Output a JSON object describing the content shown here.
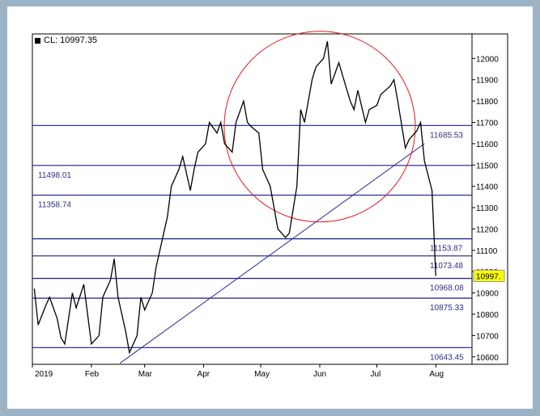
{
  "chart_data": {
    "type": "line",
    "title": "CL: 10997.35",
    "series": [
      {
        "values_note": "",
        "x": [
          "2019-01-02",
          "2019-01-04",
          "2019-01-08",
          "2019-01-10",
          "2019-01-14",
          "2019-01-16",
          "2019-01-18",
          "2019-01-22",
          "2019-01-24",
          "2019-01-28",
          "2019-01-30",
          "2019-02-01",
          "2019-02-05",
          "2019-02-07",
          "2019-02-11",
          "2019-02-13",
          "2019-02-15",
          "2019-02-19",
          "2019-02-21",
          "2019-02-25",
          "2019-02-27",
          "2019-03-01",
          "2019-03-05",
          "2019-03-07",
          "2019-03-11",
          "2019-03-13",
          "2019-03-15",
          "2019-03-19",
          "2019-03-21",
          "2019-03-25",
          "2019-03-27",
          "2019-03-29",
          "2019-04-02",
          "2019-04-04",
          "2019-04-08",
          "2019-04-10",
          "2019-04-12",
          "2019-04-16",
          "2019-04-18",
          "2019-04-22",
          "2019-04-24",
          "2019-04-26",
          "2019-04-30",
          "2019-05-02",
          "2019-05-06",
          "2019-05-08",
          "2019-05-10",
          "2019-05-14",
          "2019-05-16",
          "2019-05-20",
          "2019-05-22",
          "2019-05-24",
          "2019-05-28",
          "2019-05-30",
          "2019-06-03",
          "2019-06-05",
          "2019-06-07",
          "2019-06-11",
          "2019-06-13",
          "2019-06-17",
          "2019-06-19",
          "2019-06-21",
          "2019-06-25",
          "2019-06-27",
          "2019-07-01",
          "2019-07-03",
          "2019-07-08",
          "2019-07-10",
          "2019-07-12",
          "2019-07-16",
          "2019-07-18",
          "2019-07-22",
          "2019-07-24",
          "2019-07-26",
          "2019-07-30",
          "2019-08-01"
        ],
        "values": [
          10920,
          10750,
          10840,
          10880,
          10780,
          10690,
          10660,
          10900,
          10830,
          10940,
          10800,
          10660,
          10700,
          10880,
          10960,
          11060,
          10880,
          10720,
          10620,
          10700,
          10880,
          10820,
          10900,
          11020,
          11180,
          11260,
          11400,
          11480,
          11540,
          11380,
          11480,
          11560,
          11600,
          11700,
          11650,
          11700,
          11600,
          11560,
          11700,
          11800,
          11700,
          11680,
          11650,
          11480,
          11400,
          11300,
          11200,
          11160,
          11180,
          11400,
          11760,
          11700,
          11900,
          11960,
          12000,
          12080,
          11880,
          11980,
          11920,
          11800,
          11760,
          11850,
          11700,
          11760,
          11780,
          11830,
          11870,
          11900,
          11800,
          11580,
          11620,
          11660,
          11700,
          11520,
          11380,
          10980
        ]
      }
    ],
    "xlabels": [
      "2019",
      "Feb",
      "Mar",
      "Apr",
      "May",
      "Jun",
      "Jul",
      "Aug"
    ],
    "xlabel_dates": [
      "2019-01-01",
      "2019-02-01",
      "2019-03-01",
      "2019-04-01",
      "2019-05-01",
      "2019-06-01",
      "2019-07-01",
      "2019-08-01"
    ],
    "xlim": [
      "2019-01-01",
      "2019-08-20"
    ],
    "yticks": [
      10600,
      10700,
      10800,
      10900,
      11000,
      11100,
      11200,
      11300,
      11400,
      11500,
      11600,
      11700,
      11800,
      11900,
      12000
    ],
    "ylim": [
      10565,
      12115
    ],
    "hlines": [
      {
        "value": 11685.53,
        "label": "11685.53",
        "label_side": "right"
      },
      {
        "value": 11498.01,
        "label": "11498.01",
        "label_side": "left"
      },
      {
        "value": 11358.74,
        "label": "11358.74",
        "label_side": "left"
      },
      {
        "value": 11153.87,
        "label": "11153.87",
        "label_side": "right"
      },
      {
        "value": 11073.48,
        "label": "11073.48",
        "label_side": "right"
      },
      {
        "value": 10968.08,
        "label": "10968.08",
        "label_side": "right"
      },
      {
        "value": 10875.33,
        "label": "10875.33",
        "label_side": "right"
      },
      {
        "value": 10643.45,
        "label": "10643.45",
        "label_side": "right"
      }
    ],
    "trendline": {
      "from": [
        "2019-02-16",
        10570
      ],
      "to": [
        "2019-07-26",
        11600
      ]
    },
    "circle": {
      "center": [
        "2019-06-01",
        11680
      ],
      "color": "#dd1c1c"
    },
    "last_value": "10997.",
    "last_value_bg": "#ffff00",
    "colors": {
      "price": "#000000",
      "hline": "#1c1c8c",
      "trend": "#2a2a9a",
      "label": "#2e2e8a"
    },
    "grid": false,
    "legend": "none"
  }
}
